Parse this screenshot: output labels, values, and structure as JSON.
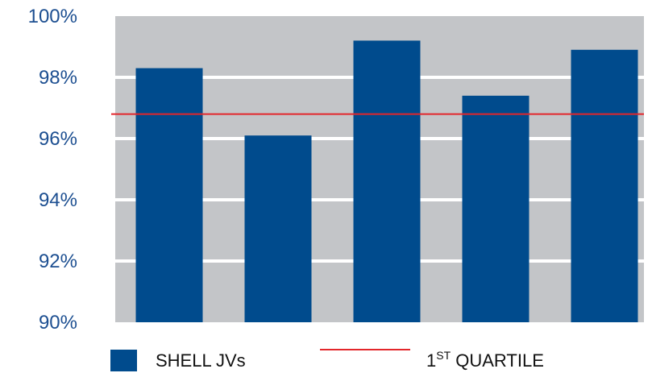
{
  "chart_data": {
    "type": "bar",
    "title": "",
    "xlabel": "",
    "ylabel": "",
    "ylim": [
      90,
      100
    ],
    "yticks": [
      90,
      92,
      94,
      96,
      98,
      100
    ],
    "ytick_labels": [
      "90%",
      "92%",
      "94%",
      "96%",
      "98%",
      "100%"
    ],
    "grid": "horizontal",
    "series": [
      {
        "name": "SHELL JVs",
        "values": [
          98.3,
          96.1,
          99.2,
          97.4,
          98.9
        ]
      }
    ],
    "reference_lines": [
      {
        "name": "1ST QUARTILE",
        "value": 96.8
      }
    ],
    "legend_placement": "bottom",
    "legend": {
      "series_label": "SHELL JVs",
      "quartile_label_main": "1",
      "quartile_label_sup": "ST",
      "quartile_label_rest": " QUARTILE"
    },
    "colors": {
      "bar": "#004b8d",
      "plot_background": "#c3c5c8",
      "gridline": "#ffffff",
      "reference_line": "#e3262b",
      "tick_text": "#1d4f91"
    }
  }
}
